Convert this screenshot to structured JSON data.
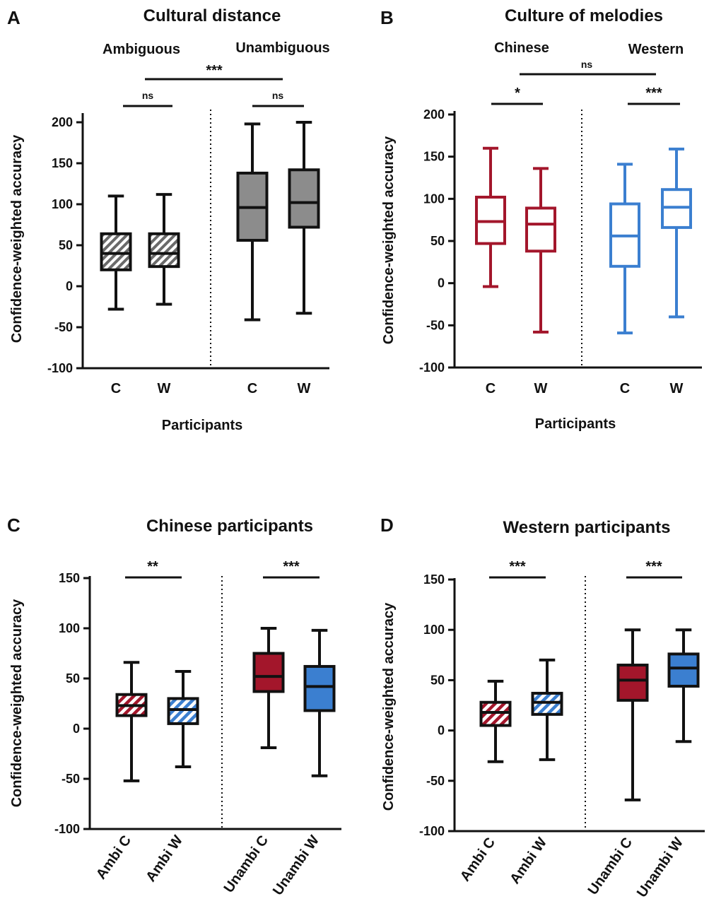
{
  "chart_data": [
    {
      "panel": "A",
      "type": "box",
      "title": "Cultural distance",
      "ylabel": "Confidence-weighted accuracy",
      "xlabel": "Participants",
      "ylim": [
        -100,
        200
      ],
      "yticks": [
        "-100",
        "-50",
        "0",
        "50",
        "100",
        "150",
        "200"
      ],
      "groups": [
        "Ambiguous",
        "Unambiguous"
      ],
      "categories": [
        "C",
        "W",
        "C",
        "W"
      ],
      "series": [
        {
          "category": "C",
          "group": "Ambiguous",
          "min": -28,
          "q1": 20,
          "median": 40,
          "q3": 64,
          "max": 110
        },
        {
          "category": "W",
          "group": "Ambiguous",
          "min": -22,
          "q1": 24,
          "median": 40,
          "q3": 64,
          "max": 112
        },
        {
          "category": "C",
          "group": "Unambiguous",
          "min": -41,
          "q1": 56,
          "median": 96,
          "q3": 138,
          "max": 198
        },
        {
          "category": "W",
          "group": "Unambiguous",
          "min": -33,
          "q1": 72,
          "median": 102,
          "q3": 142,
          "max": 200
        }
      ],
      "significance": [
        {
          "label": "ns",
          "from": 0,
          "to": 1
        },
        {
          "label": "ns",
          "from": 2,
          "to": 3
        },
        {
          "label": "***",
          "between": "groups"
        }
      ]
    },
    {
      "panel": "B",
      "type": "box",
      "title": "Culture of melodies",
      "ylabel": "Confidence-weighted accuracy",
      "xlabel": "Participants",
      "ylim": [
        -100,
        200
      ],
      "yticks": [
        "-100",
        "-50",
        "0",
        "50",
        "100",
        "150",
        "200"
      ],
      "groups": [
        "Chinese",
        "Western"
      ],
      "categories": [
        "C",
        "W",
        "C",
        "W"
      ],
      "series": [
        {
          "category": "C",
          "group": "Chinese",
          "min": -4,
          "q1": 47,
          "median": 73,
          "q3": 102,
          "max": 160
        },
        {
          "category": "W",
          "group": "Chinese",
          "min": -58,
          "q1": 38,
          "median": 70,
          "q3": 89,
          "max": 136
        },
        {
          "category": "C",
          "group": "Western",
          "min": -59,
          "q1": 20,
          "median": 56,
          "q3": 94,
          "max": 141
        },
        {
          "category": "W",
          "group": "Western",
          "min": -40,
          "q1": 66,
          "median": 90,
          "q3": 111,
          "max": 159
        }
      ],
      "significance": [
        {
          "label": "*",
          "from": 0,
          "to": 1
        },
        {
          "label": "***",
          "from": 2,
          "to": 3
        },
        {
          "label": "ns",
          "between": "groups"
        }
      ]
    },
    {
      "panel": "C",
      "type": "box",
      "title": "Chinese participants",
      "ylabel": "Confidence-weighted accuracy",
      "ylim": [
        -100,
        150
      ],
      "yticks": [
        "-100",
        "-50",
        "0",
        "50",
        "100",
        "150"
      ],
      "categories": [
        "Ambi C",
        "Ambi W",
        "Unambi C",
        "Unambi W"
      ],
      "series": [
        {
          "category": "Ambi C",
          "min": -52,
          "q1": 13,
          "median": 23,
          "q3": 34,
          "max": 66
        },
        {
          "category": "Ambi W",
          "min": -38,
          "q1": 5,
          "median": 19,
          "q3": 30,
          "max": 57
        },
        {
          "category": "Unambi C",
          "min": -19,
          "q1": 37,
          "median": 52,
          "q3": 75,
          "max": 100
        },
        {
          "category": "Unambi W",
          "min": -47,
          "q1": 18,
          "median": 42,
          "q3": 62,
          "max": 98
        }
      ],
      "significance": [
        {
          "label": "**",
          "from": 0,
          "to": 1
        },
        {
          "label": "***",
          "from": 2,
          "to": 3
        }
      ]
    },
    {
      "panel": "D",
      "type": "box",
      "title": "Western participants",
      "ylabel": "Confidence-weighted accuracy",
      "ylim": [
        -100,
        150
      ],
      "yticks": [
        "-100",
        "-50",
        "0",
        "50",
        "100",
        "150"
      ],
      "categories": [
        "Ambi C",
        "Ambi W",
        "Unambi C",
        "Unambi W"
      ],
      "series": [
        {
          "category": "Ambi C",
          "min": -31,
          "q1": 5,
          "median": 18,
          "q3": 28,
          "max": 49
        },
        {
          "category": "Ambi W",
          "min": -29,
          "q1": 16,
          "median": 28,
          "q3": 37,
          "max": 70
        },
        {
          "category": "Unambi C",
          "min": -69,
          "q1": 30,
          "median": 50,
          "q3": 65,
          "max": 100
        },
        {
          "category": "Unambi W",
          "min": -11,
          "q1": 44,
          "median": 62,
          "q3": 76,
          "max": 100
        }
      ],
      "significance": [
        {
          "label": "***",
          "from": 0,
          "to": 1
        },
        {
          "label": "***",
          "from": 2,
          "to": 3
        }
      ]
    }
  ],
  "colors": {
    "ink": "#111111",
    "gray_fill": "#8c8c8c",
    "red": "#a3162b",
    "blue": "#3b7fd0",
    "white": "#ffffff"
  }
}
